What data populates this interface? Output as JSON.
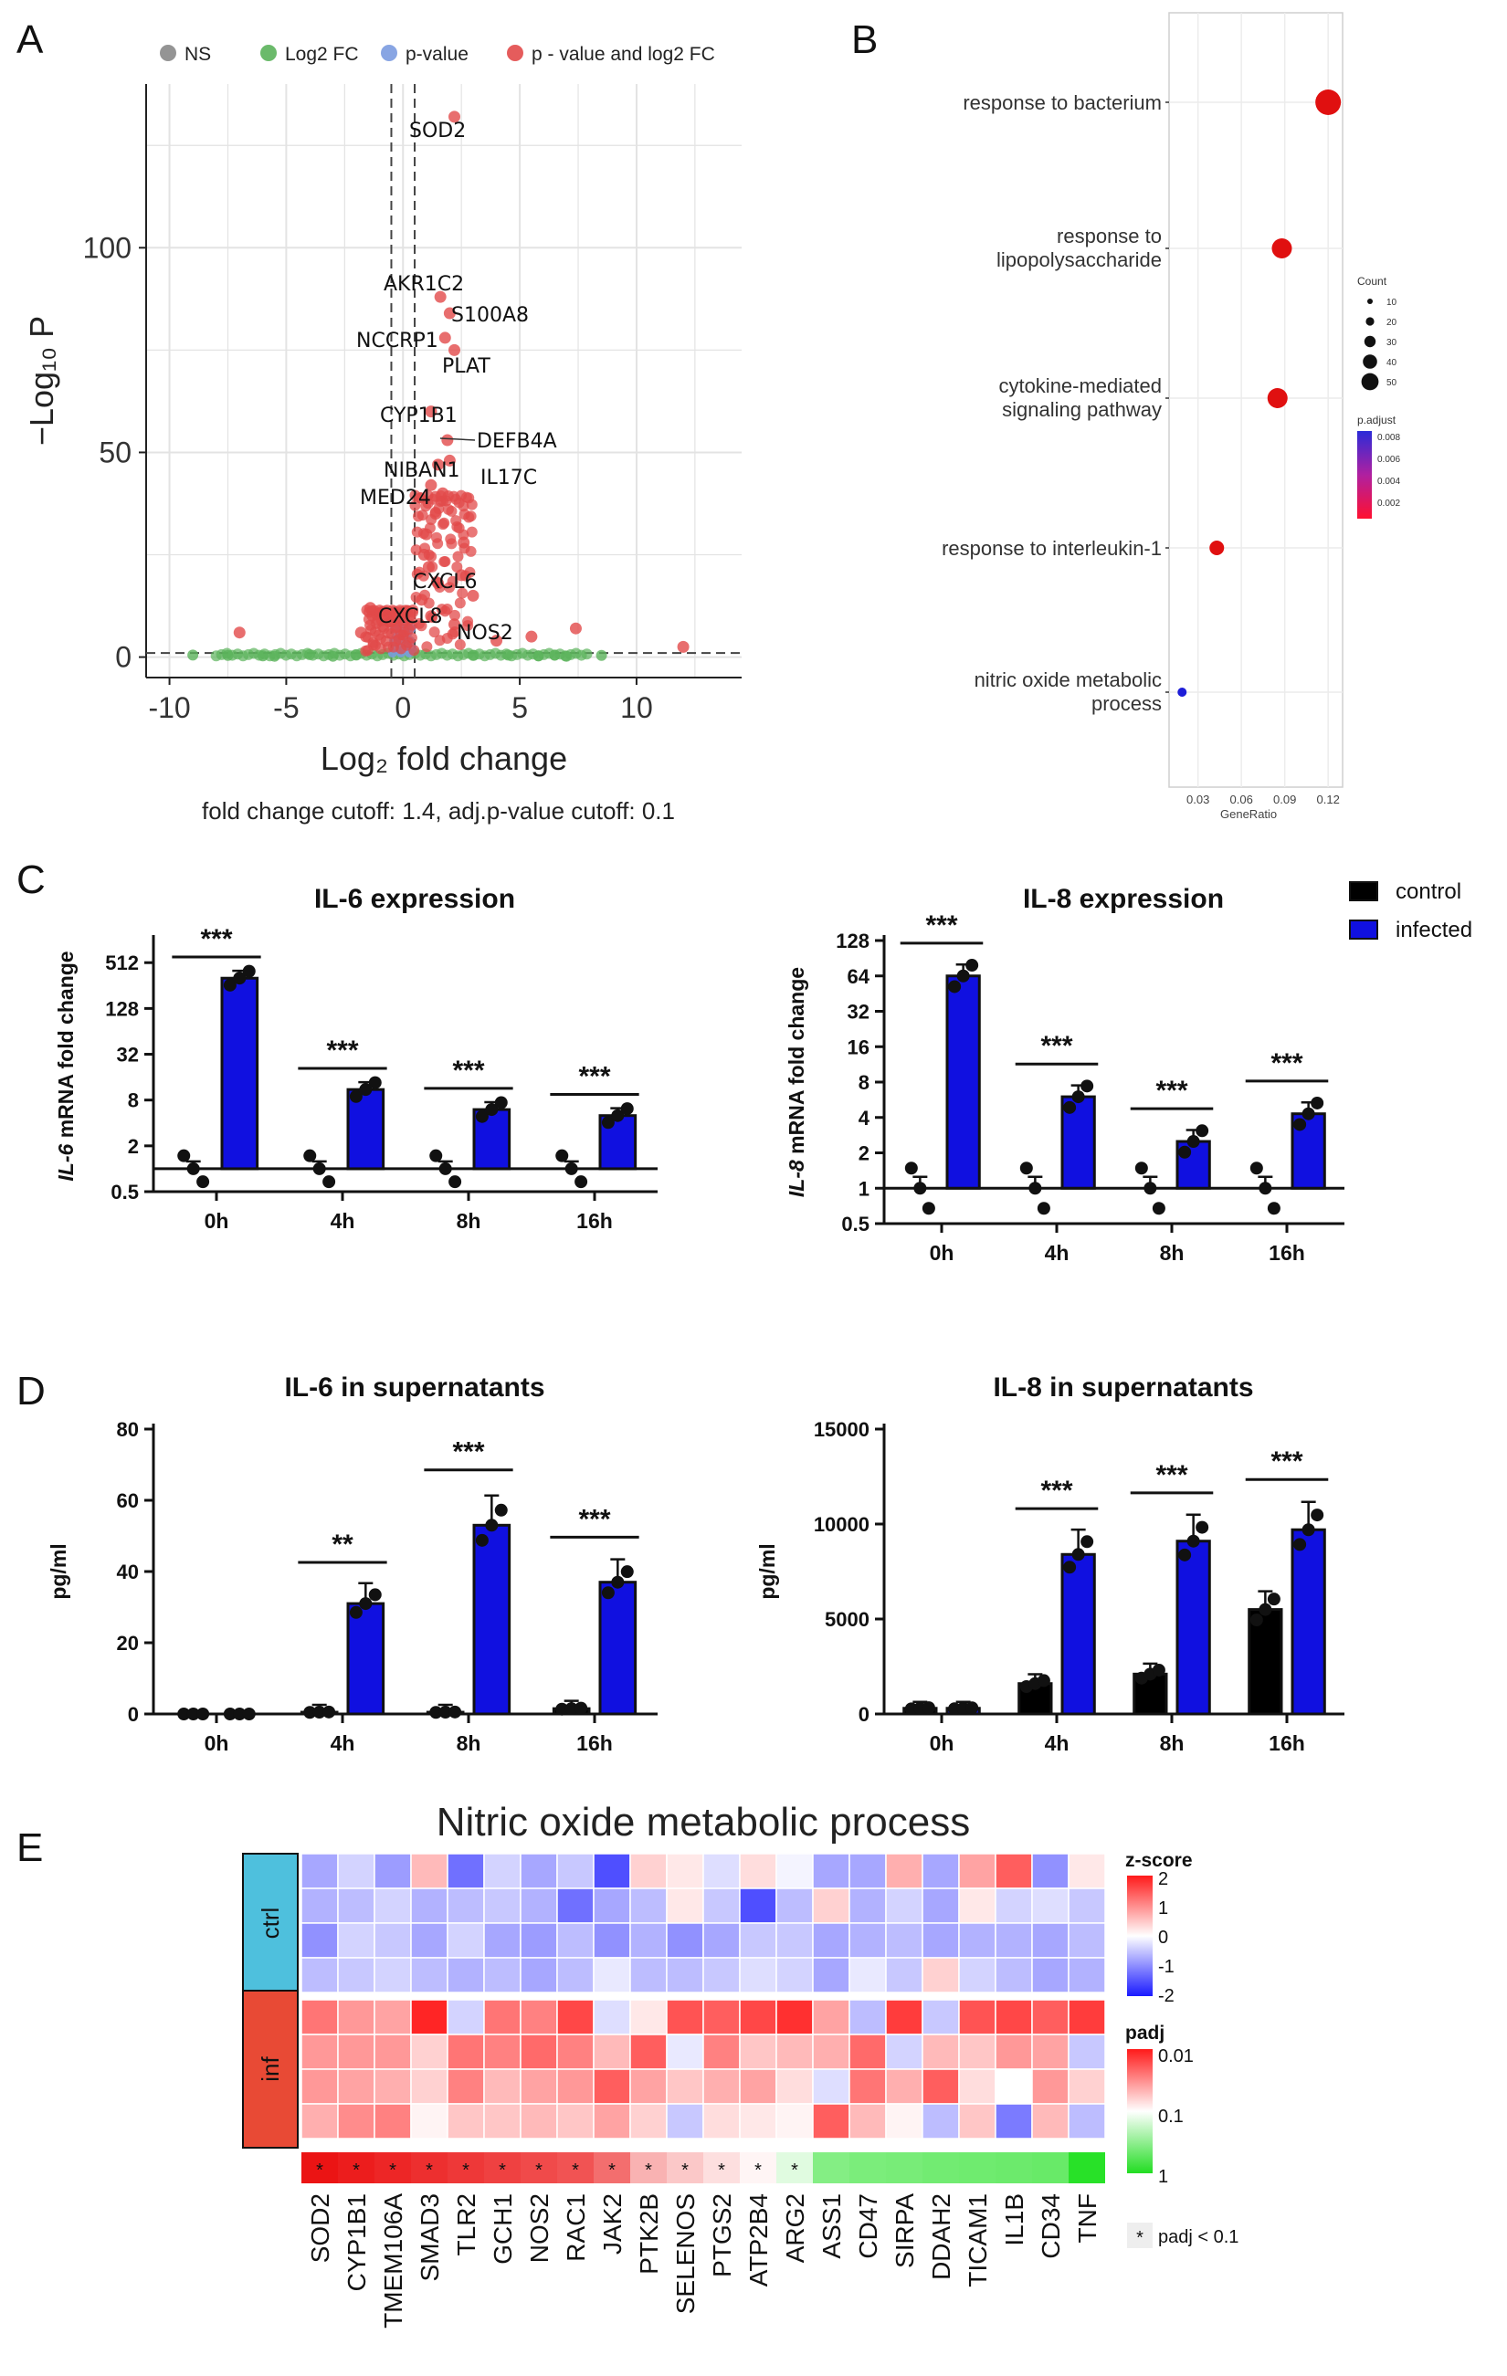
{
  "panel_labels": [
    "A",
    "B",
    "C",
    "D",
    "E"
  ],
  "colors": {
    "ns": "#888888",
    "log2fc": "#5bb35b",
    "pvalue": "#7b9be0",
    "both": "#e24a4a",
    "control": "#000000",
    "infected": "#1010e0",
    "dot_red": "#e01010",
    "dot_blue": "#1d1dd8"
  },
  "chart_data": [
    {
      "id": "A",
      "type": "scatter",
      "title": "",
      "xlabel": "Log2 fold change",
      "ylabel": "-Log10 P",
      "xlim": [
        -11,
        14.5
      ],
      "ylim": [
        -5,
        140
      ],
      "xticks": [
        -10,
        -5,
        0,
        5,
        10
      ],
      "yticks": [
        0,
        50,
        100
      ],
      "legend": [
        "NS",
        "Log2 FC",
        "p-value",
        "p - value and log2 FC"
      ],
      "caption": "fold change cutoff: 1.4, adj.p-value cutoff: 0.1",
      "cutoff_x": [
        -0.5,
        0.5
      ],
      "cutoff_y": 1,
      "labels": [
        {
          "text": "SOD2",
          "x": 2.2,
          "y": 132
        },
        {
          "text": "AKR1C2",
          "x": 1.6,
          "y": 88
        },
        {
          "text": "S100A8",
          "x": 2.0,
          "y": 84
        },
        {
          "text": "NCCRP1",
          "x": 1.8,
          "y": 78
        },
        {
          "text": "PLAT",
          "x": 2.2,
          "y": 75
        },
        {
          "text": "CYP1B1",
          "x": 1.2,
          "y": 60
        },
        {
          "text": "DEFB4A",
          "x": 1.9,
          "y": 53
        },
        {
          "text": "NIBAN1",
          "x": 1.5,
          "y": 47
        },
        {
          "text": "IL17C",
          "x": 2.0,
          "y": 48
        },
        {
          "text": "MED24",
          "x": 1.2,
          "y": 42
        },
        {
          "text": "CXCL6",
          "x": 1.5,
          "y": 18
        },
        {
          "text": "CXCL8",
          "x": 1.2,
          "y": 10
        },
        {
          "text": "NOS2",
          "x": 2.2,
          "y": 8
        }
      ],
      "points_red": [
        [
          2.2,
          132
        ],
        [
          1.6,
          88
        ],
        [
          2.0,
          84
        ],
        [
          1.8,
          78
        ],
        [
          2.2,
          75
        ],
        [
          1.2,
          60
        ],
        [
          1.9,
          53
        ],
        [
          1.5,
          47
        ],
        [
          2.0,
          48
        ],
        [
          1.2,
          42
        ],
        [
          1.5,
          18
        ],
        [
          1.2,
          10
        ],
        [
          2.2,
          8
        ],
        [
          -7.0,
          6
        ],
        [
          7.4,
          7
        ],
        [
          12.0,
          2.5
        ],
        [
          5.5,
          5
        ],
        [
          -1.4,
          12
        ],
        [
          -0.9,
          9
        ],
        [
          1.0,
          30
        ],
        [
          1.4,
          35
        ],
        [
          1.7,
          40
        ],
        [
          0.9,
          25
        ],
        [
          2.5,
          20
        ],
        [
          3.0,
          15
        ],
        [
          -1.8,
          6
        ],
        [
          4.0,
          4
        ],
        [
          0.8,
          14
        ],
        [
          1.1,
          22
        ],
        [
          2.6,
          28
        ]
      ],
      "points_green": [
        [
          -9,
          0.5
        ],
        [
          -7.5,
          0.4
        ],
        [
          -6,
          0.3
        ],
        [
          -4,
          0.6
        ],
        [
          -3,
          0.2
        ],
        [
          -2,
          0.5
        ],
        [
          3,
          0.4
        ],
        [
          4.5,
          0.5
        ],
        [
          5.8,
          0.3
        ],
        [
          7,
          0.2
        ],
        [
          8.5,
          0.4
        ],
        [
          -5.5,
          0.2
        ],
        [
          6.5,
          0.5
        ]
      ]
    },
    {
      "id": "B",
      "type": "scatter",
      "xlabel": "GeneRatio",
      "xticks": [
        "0.03",
        "0.06",
        "0.09",
        "0.12"
      ],
      "xlim": [
        0.01,
        0.13
      ],
      "terms": [
        "response to bacterium",
        "response to lipopolysaccharide",
        "cytokine-mediated signaling pathway",
        "response to interleukin-1",
        "nitric oxide metabolic process"
      ],
      "term_lines": [
        [
          "response to bacterium"
        ],
        [
          "response to",
          "lipopolysaccharide"
        ],
        [
          "cytokine-mediated",
          "signaling pathway"
        ],
        [
          "response to interleukin-1"
        ],
        [
          "nitric oxide metabolic",
          "process"
        ]
      ],
      "gene_ratio": [
        0.12,
        0.088,
        0.085,
        0.043,
        0.019
      ],
      "count": [
        50,
        35,
        35,
        20,
        5
      ],
      "padj_color": [
        "red",
        "red",
        "red",
        "red",
        "blue"
      ],
      "legend_count_title": "Count",
      "legend_count_labels": [
        "10",
        "20",
        "30",
        "40",
        "50"
      ],
      "legend_padj_title": "p.adjust",
      "legend_padj_labels": [
        "0.008",
        "0.006",
        "0.004",
        "0.002"
      ]
    },
    {
      "id": "C1",
      "type": "bar",
      "title": "IL-6 expression",
      "ylabel": "IL-6 mRNA fold change",
      "ylabel_italic": "IL-6",
      "ylabel_rest": " mRNA fold change",
      "scale": "log2",
      "yticks": [
        "0.5",
        "2",
        "8",
        "32",
        "128",
        "512"
      ],
      "ytick_values": [
        0.5,
        2,
        8,
        32,
        128,
        512
      ],
      "ylim": [
        0.5,
        1000
      ],
      "categories": [
        "0h",
        "4h",
        "8h",
        "16h"
      ],
      "series": [
        {
          "name": "control",
          "values": [
            1,
            1,
            1,
            1
          ]
        },
        {
          "name": "infected",
          "values": [
            320,
            11,
            6,
            5
          ]
        }
      ],
      "significance": [
        "***",
        "***",
        "***",
        "***"
      ]
    },
    {
      "id": "C2",
      "type": "bar",
      "title": "IL-8 expression",
      "ylabel": "IL-8 mRNA fold change",
      "ylabel_italic": "IL-8",
      "ylabel_rest": " mRNA fold change",
      "scale": "log2",
      "yticks": [
        "0.5",
        "1",
        "2",
        "4",
        "8",
        "16",
        "32",
        "64",
        "128"
      ],
      "ytick_values": [
        0.5,
        1,
        2,
        4,
        8,
        16,
        32,
        64,
        128
      ],
      "ylim": [
        0.5,
        128
      ],
      "categories": [
        "0h",
        "4h",
        "8h",
        "16h"
      ],
      "series": [
        {
          "name": "control",
          "values": [
            1,
            1,
            1,
            1
          ]
        },
        {
          "name": "infected",
          "values": [
            64,
            6,
            2.5,
            4.3
          ]
        }
      ],
      "significance": [
        "***",
        "***",
        "***",
        "***"
      ],
      "legend": [
        "control",
        "infected"
      ]
    },
    {
      "id": "D1",
      "type": "bar",
      "title": "IL-6 in supernatants",
      "ylabel": "pg/ml",
      "yticks": [
        "0",
        "20",
        "40",
        "60",
        "80"
      ],
      "ytick_values": [
        0,
        20,
        40,
        60,
        80
      ],
      "ylim": [
        0,
        80
      ],
      "categories": [
        "0h",
        "4h",
        "8h",
        "16h"
      ],
      "series": [
        {
          "name": "control",
          "values": [
            0,
            0.5,
            0.5,
            1.5
          ]
        },
        {
          "name": "infected",
          "values": [
            0,
            31,
            53,
            37
          ]
        }
      ],
      "significance": [
        "",
        "**",
        "***",
        "***"
      ]
    },
    {
      "id": "D2",
      "type": "bar",
      "title": "IL-8 in supernatants",
      "ylabel": "pg/ml",
      "yticks": [
        "0",
        "5000",
        "10000",
        "15000"
      ],
      "ytick_values": [
        0,
        5000,
        10000,
        15000
      ],
      "ylim": [
        0,
        15000
      ],
      "categories": [
        "0h",
        "4h",
        "8h",
        "16h"
      ],
      "series": [
        {
          "name": "control",
          "values": [
            300,
            1600,
            2100,
            5500
          ]
        },
        {
          "name": "infected",
          "values": [
            300,
            8400,
            9100,
            9700
          ]
        }
      ],
      "significance": [
        "",
        "***",
        "***",
        "***"
      ]
    },
    {
      "id": "E",
      "type": "heatmap",
      "title": "Nitric oxide metabolic process",
      "genes": [
        "SOD2",
        "CYP1B1",
        "TMEM106A",
        "SMAD3",
        "TLR2",
        "GCH1",
        "NOS2",
        "RAC1",
        "JAK2",
        "PTK2B",
        "SELENOS",
        "PTGS2",
        "ATP2B4",
        "ARG2",
        "ASS1",
        "CD47",
        "SIRPA",
        "DDAH2",
        "TICAM1",
        "IL1B",
        "CD34",
        "TNF"
      ],
      "groups": [
        "ctrl",
        "inf"
      ],
      "zscore_ctrl": [
        [
          -0.8,
          -0.4,
          -0.9,
          0.6,
          -1.3,
          -0.4,
          -0.8,
          -0.5,
          -1.6,
          0.4,
          0.2,
          -0.3,
          0.3,
          -0.1,
          -0.8,
          -0.8,
          0.7,
          -0.8,
          0.8,
          1.4,
          -1.0,
          0.2
        ],
        [
          -0.7,
          -0.6,
          -0.4,
          -0.7,
          -0.6,
          -0.5,
          -0.7,
          -1.3,
          -0.8,
          -0.6,
          0.2,
          -0.5,
          -1.6,
          -0.6,
          0.4,
          -0.7,
          -0.4,
          -0.8,
          0.2,
          -0.4,
          -0.3,
          -0.5
        ],
        [
          -1.0,
          -0.4,
          -0.5,
          -0.8,
          -0.4,
          -0.8,
          -0.9,
          -0.6,
          -1.0,
          -0.7,
          -1.0,
          -0.8,
          -0.5,
          -0.5,
          -0.8,
          -0.7,
          -0.6,
          -0.8,
          -0.7,
          -0.7,
          -0.8,
          -0.6
        ],
        [
          -0.6,
          -0.5,
          -0.4,
          -0.6,
          -0.7,
          -0.6,
          -0.8,
          -0.6,
          -0.2,
          -0.6,
          -0.6,
          -0.5,
          -0.3,
          -0.4,
          -0.8,
          -0.2,
          -0.5,
          0.4,
          -0.4,
          -0.6,
          -0.8,
          -0.7
        ]
      ],
      "zscore_inf": [
        [
          1.2,
          0.9,
          0.8,
          1.9,
          -0.4,
          1.2,
          1.1,
          1.6,
          -0.3,
          0.2,
          1.5,
          1.4,
          1.6,
          1.8,
          0.8,
          -0.6,
          1.7,
          -0.5,
          1.5,
          1.6,
          1.4,
          1.7
        ],
        [
          0.9,
          0.9,
          0.9,
          0.4,
          1.2,
          1.1,
          1.3,
          1.1,
          0.6,
          1.4,
          -0.2,
          1.1,
          0.5,
          0.6,
          0.7,
          1.3,
          -0.4,
          0.6,
          0.5,
          0.9,
          0.8,
          -0.5
        ],
        [
          0.9,
          0.8,
          0.7,
          0.4,
          1.1,
          0.6,
          0.8,
          0.9,
          1.4,
          0.8,
          0.5,
          0.7,
          0.8,
          0.3,
          -0.3,
          1.2,
          0.7,
          1.4,
          0.3,
          0.0,
          0.9,
          0.4
        ],
        [
          0.7,
          1.0,
          1.1,
          0.1,
          0.5,
          0.5,
          0.6,
          0.5,
          0.8,
          0.4,
          -0.5,
          0.3,
          0.2,
          0.1,
          1.4,
          0.6,
          0.1,
          -0.6,
          0.5,
          -1.2,
          0.6,
          -0.6
        ]
      ],
      "padj_rank": [
        0,
        0.02,
        0.04,
        0.06,
        0.08,
        0.1,
        0.12,
        0.14,
        0.2,
        0.35,
        0.4,
        0.45,
        0.5,
        0.6,
        0.9,
        0.93,
        0.94,
        0.96,
        0.97,
        0.98,
        0.99,
        1.2
      ],
      "significant": [
        true,
        true,
        true,
        true,
        true,
        true,
        true,
        true,
        true,
        true,
        true,
        true,
        true,
        true,
        false,
        false,
        false,
        false,
        false,
        false,
        false,
        false
      ],
      "sig_mark": "*",
      "zscore_title": "z-score",
      "zscore_labels": [
        "2",
        "1",
        "0",
        "-1",
        "-2"
      ],
      "padj_title": "padj",
      "padj_labels": [
        "0.01",
        "0.1",
        "1"
      ],
      "sig_legend": "padj < 0.1"
    }
  ]
}
